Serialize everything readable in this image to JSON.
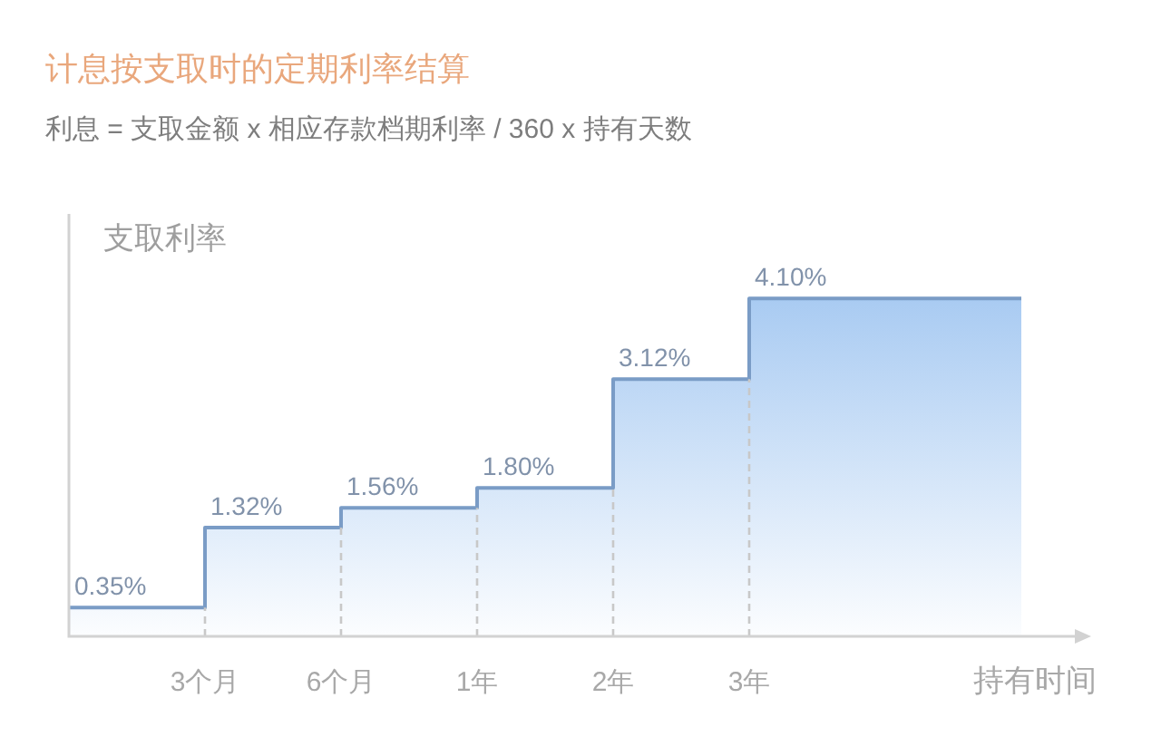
{
  "chart_data": {
    "type": "area",
    "title": "计息按支取时的定期利率结算",
    "subtitle": "利息 = 支取金额 x 相应存款档期利率 / 360 x 持有天数",
    "ylabel": "支取利率",
    "xlabel": "持有时间",
    "categories": [
      null,
      "3个月",
      "6个月",
      "1年",
      "2年",
      "3年",
      null,
      null
    ],
    "tick_labels": "x",
    "ref_lines": [
      {
        "axis": "x",
        "value": "3个月",
        "color": "#c8c8c8",
        "line_style": "dashed"
      },
      {
        "axis": "x",
        "value": "6个月",
        "color": "#c8c8c8",
        "line_style": "dashed"
      },
      {
        "axis": "x",
        "value": "1年",
        "color": "#c8c8c8",
        "line_style": "dashed"
      },
      {
        "axis": "x",
        "value": "2年",
        "color": "#c8c8c8",
        "line_style": "dashed"
      },
      {
        "axis": "x",
        "value": "3年",
        "color": "#c8c8c8",
        "line_style": "dashed"
      }
    ],
    "series": [
      {
        "color": "#7a9cc6",
        "values": [
          0.35,
          1.32,
          1.56,
          1.8,
          3.12,
          4.1,
          4.1,
          4.1
        ],
        "value_labels": [
          "0.35%",
          "1.32%",
          "1.56%",
          "1.80%",
          "3.12%",
          "4.10%",
          null,
          null
        ]
      }
    ]
  }
}
